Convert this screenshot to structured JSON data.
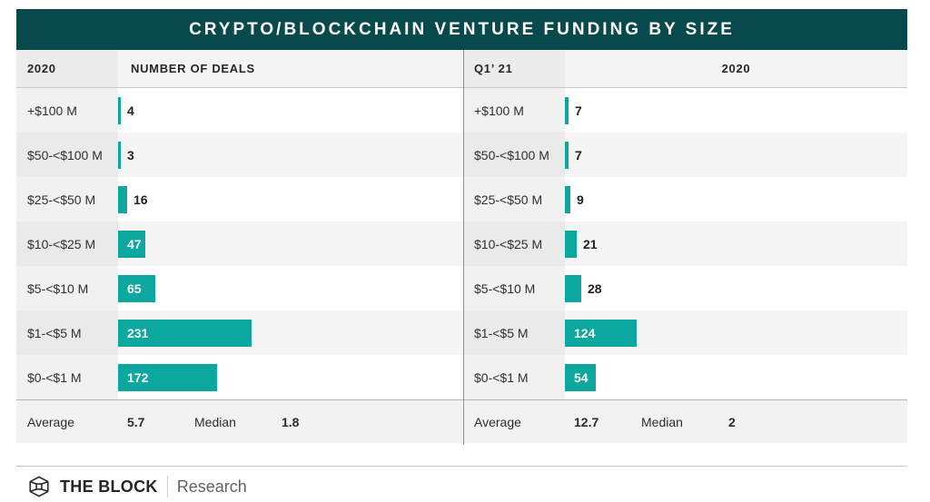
{
  "title": "CRYPTO/BLOCKCHAIN VENTURE FUNDING BY SIZE",
  "colors": {
    "title_bg": "#07494d",
    "title_text": "#ffffff",
    "bar": "#0ca89f",
    "label_column_bg": "#f1f1f1",
    "alt_row_bg": "#f5f5f5"
  },
  "chart_data": [
    {
      "type": "bar",
      "orientation": "horizontal",
      "panel_period": "2020",
      "panel_metric": "NUMBER OF DEALS",
      "categories": [
        "+$100 M",
        "$50-<$100 M",
        "$25-<$50 M",
        "$10-<$25 M",
        "$5-<$10 M",
        "$1-<$5 M",
        "$0-<$1 M"
      ],
      "values": [
        4,
        3,
        16,
        47,
        65,
        231,
        172
      ],
      "xlim": [
        0,
        240
      ],
      "average": "5.7",
      "median": "1.8"
    },
    {
      "type": "bar",
      "orientation": "horizontal",
      "panel_period": "Q1’ 21",
      "panel_metric": "2020",
      "categories": [
        "+$100 M",
        "$50-<$100 M",
        "$25-<$50 M",
        "$10-<$25 M",
        "$5-<$10 M",
        "$1-<$5 M",
        "$0-<$1 M"
      ],
      "values": [
        7,
        7,
        9,
        21,
        28,
        124,
        54
      ],
      "xlim": [
        0,
        240
      ],
      "average": "12.7",
      "median": "2"
    }
  ],
  "summary_labels": {
    "average": "Average",
    "median": "Median"
  },
  "footer": {
    "brand": "THE BLOCK",
    "division": "Research"
  }
}
